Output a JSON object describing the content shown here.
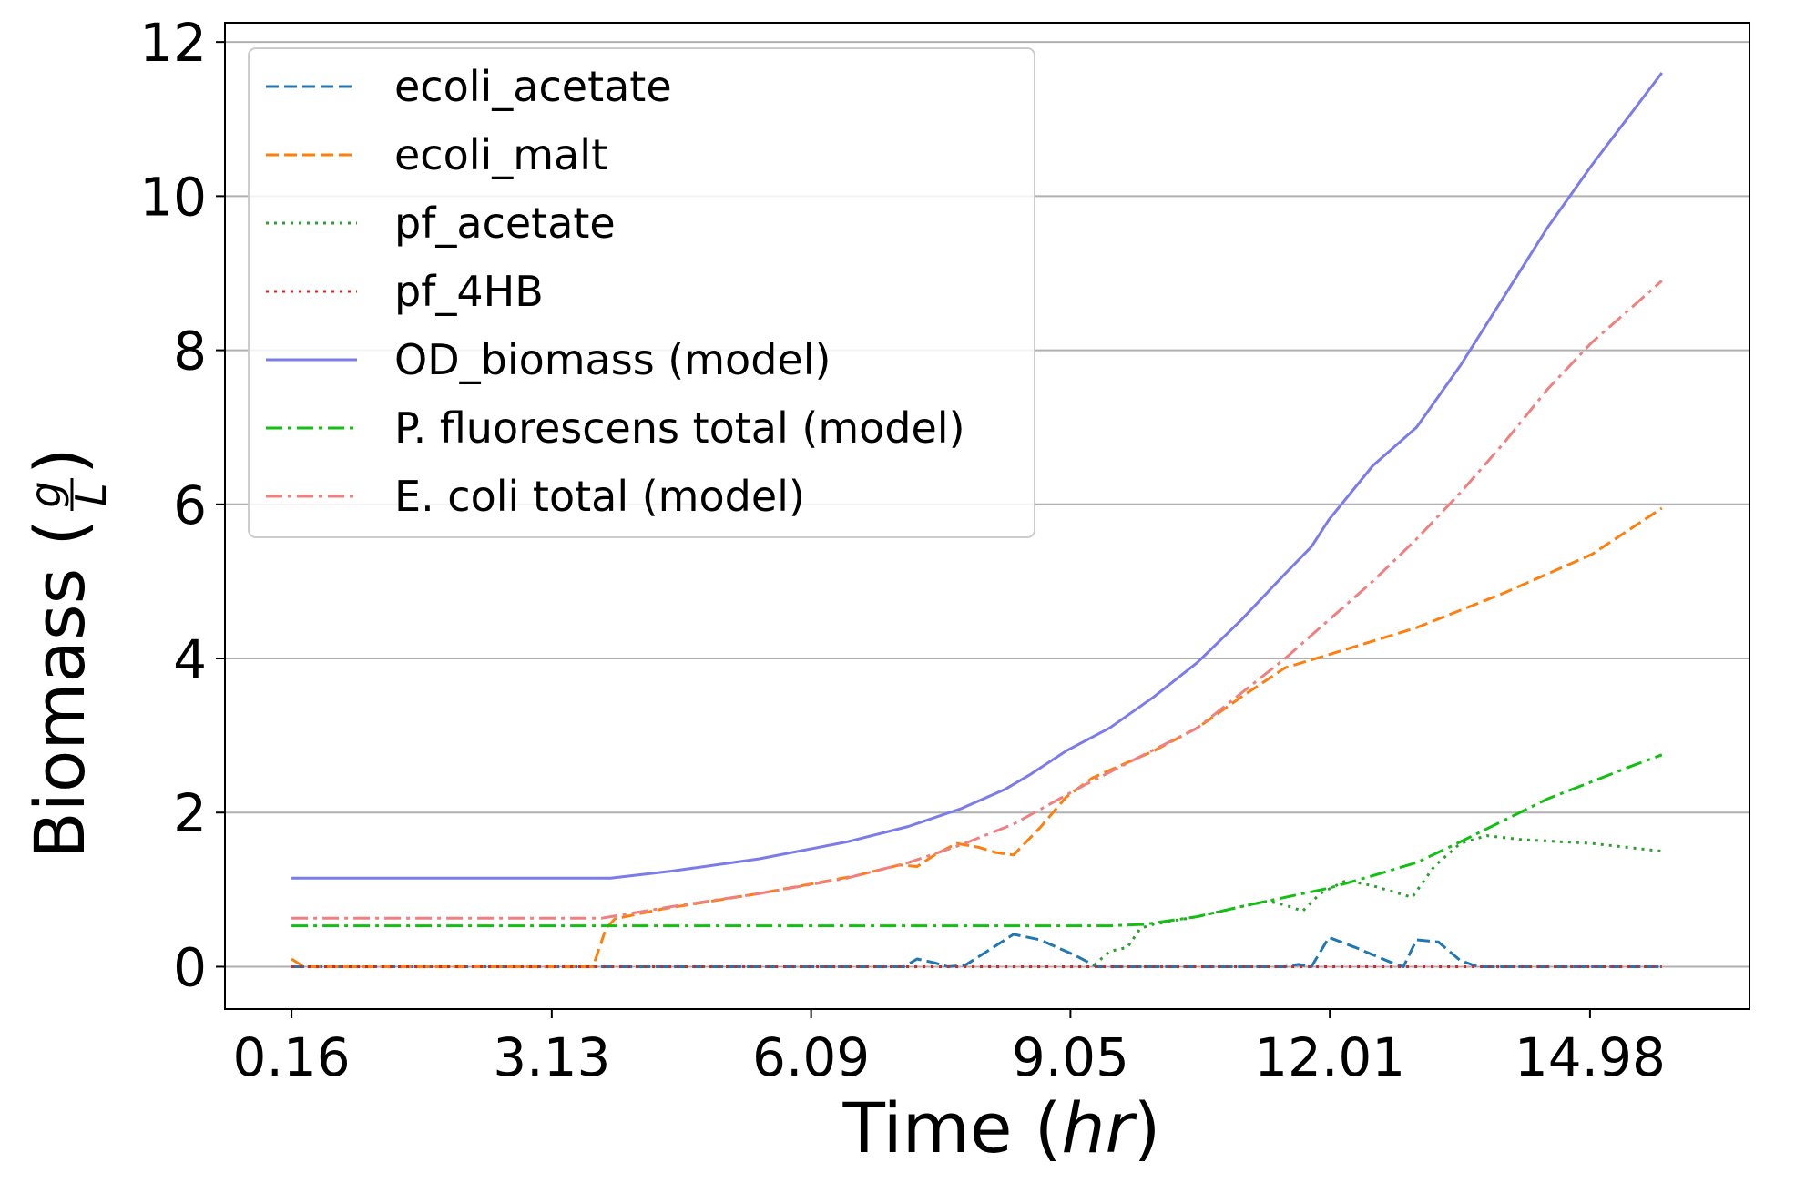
{
  "chart_data": {
    "type": "line",
    "xlabel": {
      "main": "Time (",
      "italic": "hr",
      "close": ")"
    },
    "ylabel": {
      "main": "Biomass (",
      "frac_num": "g",
      "frac_den": "L",
      "close": ")"
    },
    "xlim": [
      -0.6,
      16.8
    ],
    "ylim": [
      -0.55,
      12.25
    ],
    "x_ticks": [
      0.16,
      3.13,
      6.09,
      9.05,
      12.01,
      14.98
    ],
    "x_tick_labels": [
      "0.16",
      "3.13",
      "6.09",
      "9.05",
      "12.01",
      "14.98"
    ],
    "y_ticks": [
      0,
      2,
      4,
      6,
      8,
      10,
      12
    ],
    "y_tick_labels": [
      "0",
      "2",
      "4",
      "6",
      "8",
      "10",
      "12"
    ],
    "grid": "horizontal",
    "legend": "top-left",
    "series": [
      {
        "name": "ecoli_acetate",
        "color": "#1f77b4",
        "style": "dashed",
        "points": [
          [
            0.16,
            0
          ],
          [
            7.15,
            0
          ],
          [
            7.3,
            0.1
          ],
          [
            7.5,
            0.05
          ],
          [
            7.65,
            0
          ],
          [
            7.85,
            0.02
          ],
          [
            8.1,
            0.2
          ],
          [
            8.4,
            0.42
          ],
          [
            8.7,
            0.35
          ],
          [
            9.1,
            0.15
          ],
          [
            9.35,
            0
          ],
          [
            11.5,
            0
          ],
          [
            11.65,
            0.03
          ],
          [
            11.8,
            0
          ],
          [
            12.0,
            0.38
          ],
          [
            12.3,
            0.25
          ],
          [
            12.7,
            0.06
          ],
          [
            12.85,
            0
          ],
          [
            13.0,
            0.35
          ],
          [
            13.25,
            0.32
          ],
          [
            13.5,
            0.08
          ],
          [
            13.7,
            0
          ],
          [
            15.8,
            0
          ]
        ]
      },
      {
        "name": "ecoli_malt",
        "color": "#ff7f0e",
        "style": "dashed",
        "points": [
          [
            0.16,
            0.1
          ],
          [
            0.3,
            0
          ],
          [
            3.6,
            0
          ],
          [
            3.75,
            0.5
          ],
          [
            3.85,
            0.62
          ],
          [
            4.4,
            0.75
          ],
          [
            5.5,
            0.95
          ],
          [
            6.6,
            1.18
          ],
          [
            7.1,
            1.32
          ],
          [
            7.3,
            1.3
          ],
          [
            7.5,
            1.45
          ],
          [
            7.75,
            1.6
          ],
          [
            8.0,
            1.55
          ],
          [
            8.2,
            1.48
          ],
          [
            8.4,
            1.45
          ],
          [
            8.7,
            1.8
          ],
          [
            9.0,
            2.2
          ],
          [
            9.3,
            2.45
          ],
          [
            10.0,
            2.8
          ],
          [
            10.5,
            3.1
          ],
          [
            11.0,
            3.5
          ],
          [
            11.5,
            3.88
          ],
          [
            12.0,
            4.05
          ],
          [
            13.0,
            4.4
          ],
          [
            14.0,
            4.85
          ],
          [
            15.0,
            5.35
          ],
          [
            15.8,
            5.95
          ]
        ]
      },
      {
        "name": "pf_acetate",
        "color": "#2ca02c",
        "style": "dotted",
        "points": [
          [
            0.16,
            0
          ],
          [
            9.3,
            0
          ],
          [
            9.5,
            0.2
          ],
          [
            9.7,
            0.25
          ],
          [
            9.85,
            0.5
          ],
          [
            10.0,
            0.55
          ],
          [
            10.5,
            0.65
          ],
          [
            11.0,
            0.78
          ],
          [
            11.3,
            0.85
          ],
          [
            11.5,
            0.8
          ],
          [
            11.7,
            0.72
          ],
          [
            11.9,
            0.95
          ],
          [
            12.2,
            1.12
          ],
          [
            12.5,
            1.05
          ],
          [
            12.8,
            0.95
          ],
          [
            12.95,
            0.9
          ],
          [
            13.2,
            1.3
          ],
          [
            13.5,
            1.6
          ],
          [
            13.8,
            1.7
          ],
          [
            14.2,
            1.65
          ],
          [
            15.0,
            1.6
          ],
          [
            15.8,
            1.5
          ]
        ]
      },
      {
        "name": "pf_4HB",
        "color": "#d62728",
        "style": "dotted",
        "points": [
          [
            0.16,
            0
          ],
          [
            15.8,
            0
          ]
        ]
      },
      {
        "name": "OD_biomass (model)",
        "color": "#7b7bea",
        "style": "solid",
        "points": [
          [
            0.16,
            1.15
          ],
          [
            3.5,
            1.15
          ],
          [
            3.8,
            1.15
          ],
          [
            4.5,
            1.24
          ],
          [
            5.5,
            1.4
          ],
          [
            6.5,
            1.62
          ],
          [
            7.2,
            1.82
          ],
          [
            7.8,
            2.05
          ],
          [
            8.3,
            2.3
          ],
          [
            8.6,
            2.5
          ],
          [
            9.0,
            2.8
          ],
          [
            9.5,
            3.1
          ],
          [
            10.0,
            3.5
          ],
          [
            10.5,
            3.95
          ],
          [
            11.0,
            4.5
          ],
          [
            11.5,
            5.1
          ],
          [
            11.8,
            5.45
          ],
          [
            12.0,
            5.8
          ],
          [
            12.5,
            6.5
          ],
          [
            13.0,
            7.0
          ],
          [
            13.5,
            7.8
          ],
          [
            14.0,
            8.7
          ],
          [
            14.5,
            9.6
          ],
          [
            15.0,
            10.4
          ],
          [
            15.4,
            11.0
          ],
          [
            15.8,
            11.6
          ]
        ]
      },
      {
        "name": "P. fluorescens total (model)",
        "color": "#12bf12",
        "style": "dashdot",
        "points": [
          [
            0.16,
            0.53
          ],
          [
            9.5,
            0.53
          ],
          [
            9.9,
            0.55
          ],
          [
            10.5,
            0.65
          ],
          [
            11.0,
            0.78
          ],
          [
            11.5,
            0.9
          ],
          [
            12.0,
            1.02
          ],
          [
            12.5,
            1.18
          ],
          [
            13.0,
            1.35
          ],
          [
            13.5,
            1.62
          ],
          [
            14.0,
            1.9
          ],
          [
            14.5,
            2.18
          ],
          [
            15.0,
            2.4
          ],
          [
            15.4,
            2.58
          ],
          [
            15.8,
            2.75
          ]
        ]
      },
      {
        "name": "E. coli total (model)",
        "color": "#f08080",
        "style": "dashdot",
        "points": [
          [
            0.16,
            0.63
          ],
          [
            3.7,
            0.63
          ],
          [
            4.5,
            0.78
          ],
          [
            5.5,
            0.95
          ],
          [
            6.5,
            1.15
          ],
          [
            7.2,
            1.35
          ],
          [
            7.8,
            1.58
          ],
          [
            8.4,
            1.85
          ],
          [
            8.8,
            2.1
          ],
          [
            9.2,
            2.35
          ],
          [
            9.8,
            2.7
          ],
          [
            10.5,
            3.1
          ],
          [
            11.0,
            3.55
          ],
          [
            11.5,
            4.0
          ],
          [
            12.0,
            4.5
          ],
          [
            12.5,
            5.0
          ],
          [
            13.0,
            5.55
          ],
          [
            13.5,
            6.15
          ],
          [
            14.0,
            6.8
          ],
          [
            14.5,
            7.5
          ],
          [
            15.0,
            8.1
          ],
          [
            15.4,
            8.5
          ],
          [
            15.8,
            8.9
          ]
        ]
      }
    ]
  }
}
